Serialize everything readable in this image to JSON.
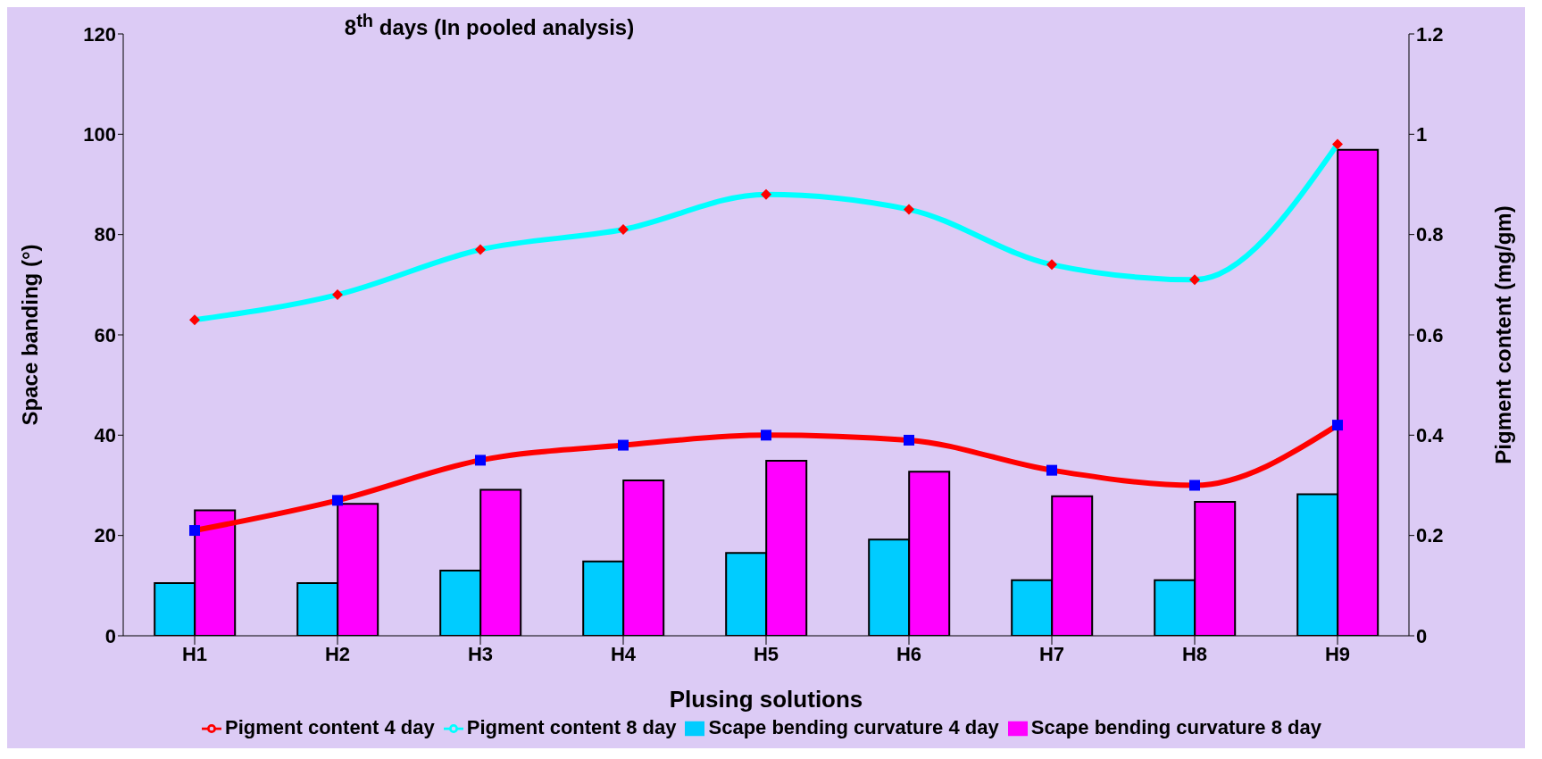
{
  "chart_data": {
    "type": "bar",
    "title": "8$^{th}$ days  (In pooled analysis)",
    "xlabel": "Plusing solutions",
    "ylabel": "Space banding (°)",
    "y2label": "Pigment content (mg/gm)",
    "categories": [
      "H1",
      "H2",
      "H3",
      "H4",
      "H5",
      "H6",
      "H7",
      "H8",
      "H9"
    ],
    "series": [
      {
        "name": "Scape bending curvature  4 day",
        "color": "#00ccff",
        "values": [
          10.5,
          10.5,
          13,
          14.8,
          16.5,
          19.2,
          11.1,
          11.1,
          28.2
        ]
      },
      {
        "name": "Scape bending curvature  8 day",
        "color": "#ff00ff",
        "values": [
          25,
          26.3,
          29.1,
          31,
          34.9,
          32.7,
          27.8,
          26.7,
          96.9
        ]
      },
      {
        "name": "Pigment content  4 day",
        "type": "line",
        "axis": "y2",
        "color": "#ff0000",
        "marker": "square",
        "values": [
          0.21,
          0.27,
          0.35,
          0.38,
          0.4,
          0.39,
          0.33,
          0.3,
          0.42
        ]
      },
      {
        "name": "Pigment content  8 day",
        "type": "line",
        "axis": "y2",
        "color": "#00ffff",
        "marker": "diamond",
        "values": [
          0.63,
          0.68,
          0.77,
          0.81,
          0.88,
          0.85,
          0.74,
          0.71,
          0.98
        ]
      }
    ],
    "ylim": [
      0,
      120
    ],
    "yticks": [
      0,
      20,
      40,
      60,
      80,
      100,
      120
    ],
    "y2lim": [
      0,
      1.2
    ],
    "y2ticks": [
      0,
      0.2,
      0.4,
      0.6,
      0.8,
      1,
      1.2
    ],
    "grid": false,
    "legend": "bottom"
  }
}
